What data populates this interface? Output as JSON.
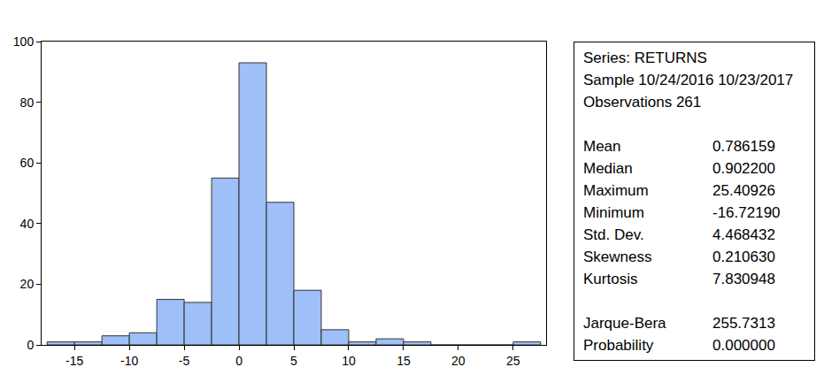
{
  "chart_data": {
    "type": "histogram",
    "bins": [
      -17.5,
      -15,
      -12.5,
      -10,
      -7.5,
      -5,
      -2.5,
      0,
      2.5,
      5,
      7.5,
      10,
      12.5,
      15,
      17.5,
      20,
      22.5,
      25,
      27.5
    ],
    "values": [
      1,
      1,
      3,
      4,
      15,
      14,
      55,
      93,
      47,
      18,
      5,
      1,
      2,
      1,
      0,
      0,
      0,
      1
    ],
    "color": "#9fbff8",
    "xlim": [
      -18,
      28
    ],
    "xticks": [
      -15,
      -10,
      -5,
      0,
      5,
      10,
      15,
      20,
      25
    ],
    "ylim": [
      0,
      100
    ],
    "yticks": [
      0,
      20,
      40,
      60,
      80,
      100
    ],
    "grid": false
  },
  "stats_box": {
    "header": [
      "Series: RETURNS",
      "Sample 10/24/2016 10/23/2017",
      "Observations 261"
    ],
    "rows": [
      [
        "Mean",
        "0.786159"
      ],
      [
        "Median",
        "0.902200"
      ],
      [
        "Maximum",
        "25.40926"
      ],
      [
        "Minimum",
        "-16.72190"
      ],
      [
        "Std. Dev.",
        "4.468432"
      ],
      [
        "Skewness",
        "0.210630"
      ],
      [
        "Kurtosis",
        "7.830948"
      ]
    ],
    "test_rows": [
      [
        "Jarque-Bera",
        "255.7313"
      ],
      [
        "Probability",
        "0.000000"
      ]
    ]
  }
}
